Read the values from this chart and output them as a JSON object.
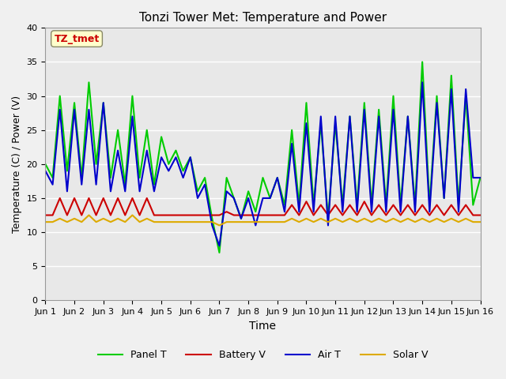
{
  "title": "Tonzi Tower Met: Temperature and Power",
  "xlabel": "Time",
  "ylabel": "Temperature (C) / Power (V)",
  "xlim": [
    0,
    15
  ],
  "ylim": [
    0,
    40
  ],
  "yticks": [
    0,
    5,
    10,
    15,
    20,
    25,
    30,
    35,
    40
  ],
  "xtick_labels": [
    "Jun 1",
    "Jun 2",
    "Jun 3",
    "Jun 4",
    "Jun 5",
    "Jun 6",
    "Jun 7",
    "Jun 8",
    "Jun 9",
    "Jun 10",
    "Jun 11",
    "Jun 12",
    "Jun 13",
    "Jun 14",
    "Jun 15",
    "Jun 16"
  ],
  "xtick_positions": [
    0,
    1,
    2,
    3,
    4,
    5,
    6,
    7,
    8,
    9,
    10,
    11,
    12,
    13,
    14,
    15
  ],
  "legend_labels": [
    "Panel T",
    "Battery V",
    "Air T",
    "Solar V"
  ],
  "legend_colors": [
    "#00cc00",
    "#cc0000",
    "#0000cc",
    "#ccaa00"
  ],
  "annotation_text": "TZ_tmet",
  "annotation_color": "#cc0000",
  "annotation_bg": "#ffffcc",
  "background_color": "#e8e8e8",
  "grid_color": "#ffffff",
  "panel_t": [
    20,
    18,
    30,
    19,
    29,
    18,
    32,
    20,
    29,
    18,
    25,
    17,
    30,
    18,
    25,
    17,
    24,
    20,
    22,
    19,
    21,
    16,
    18,
    12,
    7,
    18,
    15,
    12,
    16,
    13,
    18,
    15,
    18,
    14,
    25,
    14,
    29,
    14,
    26,
    12,
    26,
    14,
    27,
    14,
    29,
    14,
    28,
    14,
    30,
    14,
    27,
    14,
    35,
    14,
    30,
    15,
    33,
    14,
    30,
    14,
    18
  ],
  "battery_v": [
    12.5,
    12.5,
    15,
    12.5,
    15,
    12.5,
    15,
    12.5,
    15,
    12.5,
    15,
    12.5,
    15,
    12.5,
    15,
    12.5,
    12.5,
    12.5,
    12.5,
    12.5,
    12.5,
    12.5,
    12.5,
    12.5,
    12.5,
    13,
    12.5,
    12.5,
    12.5,
    12.5,
    12.5,
    12.5,
    12.5,
    12.5,
    14,
    12.5,
    14.5,
    12.5,
    14,
    12.5,
    14,
    12.5,
    14,
    12.5,
    14.5,
    12.5,
    14,
    12.5,
    14,
    12.5,
    14,
    12.5,
    14,
    12.5,
    14,
    12.5,
    14,
    12.5,
    14,
    12.5,
    12.5
  ],
  "air_t": [
    19,
    17,
    28,
    16,
    28,
    17,
    28,
    17,
    29,
    16,
    22,
    16,
    27,
    16,
    22,
    16,
    21,
    19,
    21,
    18,
    21,
    15,
    17,
    11,
    8,
    16,
    15,
    12,
    15,
    11,
    15,
    15,
    18,
    13,
    23,
    13,
    26,
    13,
    27,
    11,
    27,
    13,
    27,
    13,
    28,
    13,
    27,
    13,
    28,
    13,
    27,
    13,
    32,
    13,
    29,
    15,
    31,
    13,
    31,
    18,
    18
  ],
  "solar_v": [
    11.5,
    11.5,
    12,
    11.5,
    12,
    11.5,
    12.5,
    11.5,
    12,
    11.5,
    12,
    11.5,
    12.5,
    11.5,
    12,
    11.5,
    11.5,
    11.5,
    11.5,
    11.5,
    11.5,
    11.5,
    11.5,
    11.5,
    11,
    11.5,
    11.5,
    11.5,
    11.5,
    11.5,
    11.5,
    11.5,
    11.5,
    11.5,
    12,
    11.5,
    12,
    11.5,
    12,
    11.5,
    12,
    11.5,
    12,
    11.5,
    12,
    11.5,
    12,
    11.5,
    12,
    11.5,
    12,
    11.5,
    12,
    11.5,
    12,
    11.5,
    12,
    11.5,
    12,
    11.5,
    11.5
  ]
}
